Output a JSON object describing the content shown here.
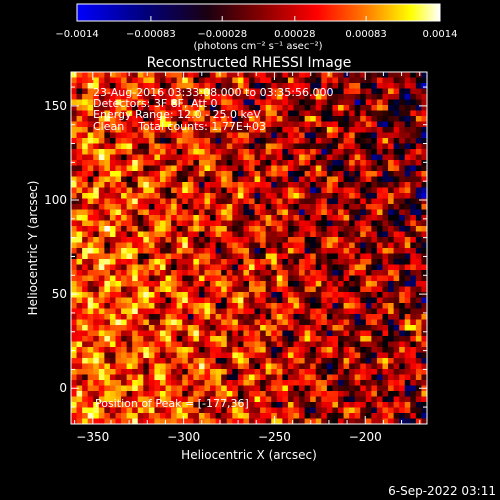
{
  "chart_data": {
    "type": "heatmap",
    "title": "Reconstructed RHESSI Image",
    "xlabel": "Heliocentric X (arcsec)",
    "ylabel": "Heliocentric Y (arcsec)",
    "xlim": [
      -362,
      -166
    ],
    "ylim": [
      -19,
      168
    ],
    "xticks": [
      -350,
      -300,
      -250,
      -200
    ],
    "yticks": [
      0,
      50,
      100,
      150
    ],
    "colorbar": {
      "min": -0.0014,
      "max": 0.0014,
      "ticks": [
        -0.0014,
        -0.00083,
        -0.00028,
        0.00028,
        0.00083,
        0.0014
      ],
      "tick_labels": [
        "−0.0014",
        "−0.00083",
        "−0.00028",
        "0.00028",
        "0.00083",
        "0.0014"
      ],
      "units": "(photons cm⁻² s⁻¹ asec⁻²)"
    },
    "colormap": [
      "#0000ff",
      "#000080",
      "#000000",
      "#800000",
      "#ff0000",
      "#ff8000",
      "#ffff00",
      "#ffffff"
    ],
    "annotations": [
      "23-Aug-2016 03:33:08.000 to 03:35:56.000",
      "Detectors: 3F 8F, Att 0",
      "Energy Range: 12.0 - 25.0 keV",
      "Clean    Total counts: 1.77E+03"
    ],
    "peak_label": "Position of Peak = [-177,36]",
    "peak": [
      -177,
      36
    ],
    "grid": false
  },
  "footer": {
    "timestamp": "6-Sep-2022 03:11"
  }
}
